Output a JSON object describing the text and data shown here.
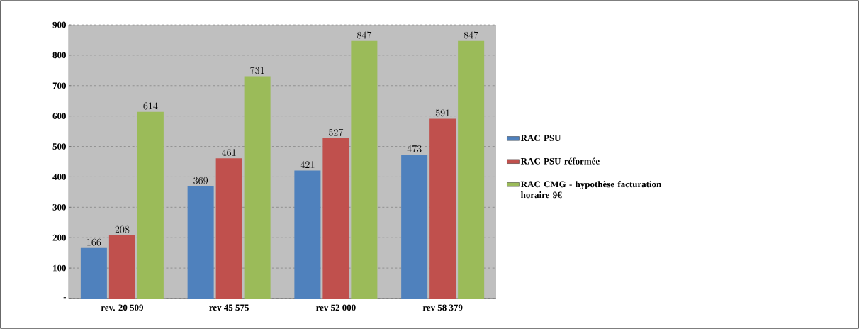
{
  "chart_data": {
    "type": "bar",
    "categories": [
      "rev. 20 509",
      "rev 45 575",
      "rev 52 000",
      "rev 58 379"
    ],
    "series": [
      {
        "name": "RAC PSU",
        "color": "#4f81bd",
        "values": [
          166,
          369,
          421,
          473
        ]
      },
      {
        "name": "RAC PSU réformée",
        "color": "#c0504d",
        "values": [
          208,
          461,
          527,
          591
        ]
      },
      {
        "name": "RAC CMG - hypothèse facturation horaire 9€",
        "color": "#9bbb59",
        "values": [
          614,
          731,
          847,
          847
        ]
      }
    ],
    "ylim": [
      0,
      900
    ],
    "yticks": [
      {
        "value": 0,
        "label": "-"
      },
      100,
      200,
      300,
      400,
      500,
      600,
      700,
      800,
      900
    ],
    "grid": "y",
    "legend": "right",
    "data_labels": true
  }
}
